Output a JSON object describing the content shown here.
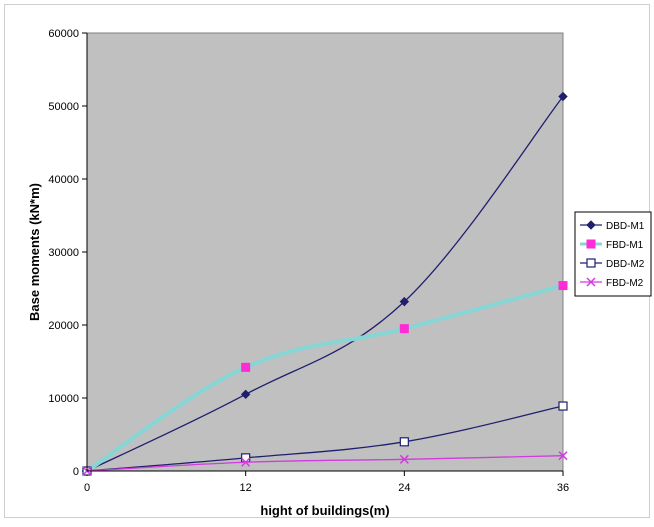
{
  "chart_data": {
    "type": "line",
    "xlabel": "hight of buildings(m)",
    "ylabel": "Base moments (kN*m)",
    "x": [
      0,
      12,
      24,
      36
    ],
    "x_ticks": [
      "0",
      "12",
      "24",
      "36"
    ],
    "ylim": [
      0,
      60000
    ],
    "y_ticks": [
      "0",
      "10000",
      "20000",
      "30000",
      "40000",
      "50000",
      "60000"
    ],
    "grid": false,
    "plot_background": "#c0c0c0",
    "legend_position": "right",
    "series": [
      {
        "name": "DBD-M1",
        "values": [
          0,
          10500,
          23200,
          51300
        ],
        "color": "#1f1f6e",
        "line_color": "#1f1f6e",
        "marker": "diamond-filled",
        "marker_color": "#1f1f6e"
      },
      {
        "name": "FBD-M1",
        "values": [
          0,
          14200,
          19500,
          25400
        ],
        "color": "#ff2bd6",
        "line_color": "#86d6d6",
        "marker": "square-filled",
        "marker_color": "#ff2bd6"
      },
      {
        "name": "DBD-M2",
        "values": [
          0,
          1800,
          4000,
          8900
        ],
        "color": "#1f1f6e",
        "line_color": "#1f1f6e",
        "marker": "square-open",
        "marker_color": "#1f1f6e"
      },
      {
        "name": "FBD-M2",
        "values": [
          0,
          1200,
          1600,
          2100
        ],
        "color": "#d23be0",
        "line_color": "#d23be0",
        "marker": "x",
        "marker_color": "#d23be0"
      }
    ]
  }
}
